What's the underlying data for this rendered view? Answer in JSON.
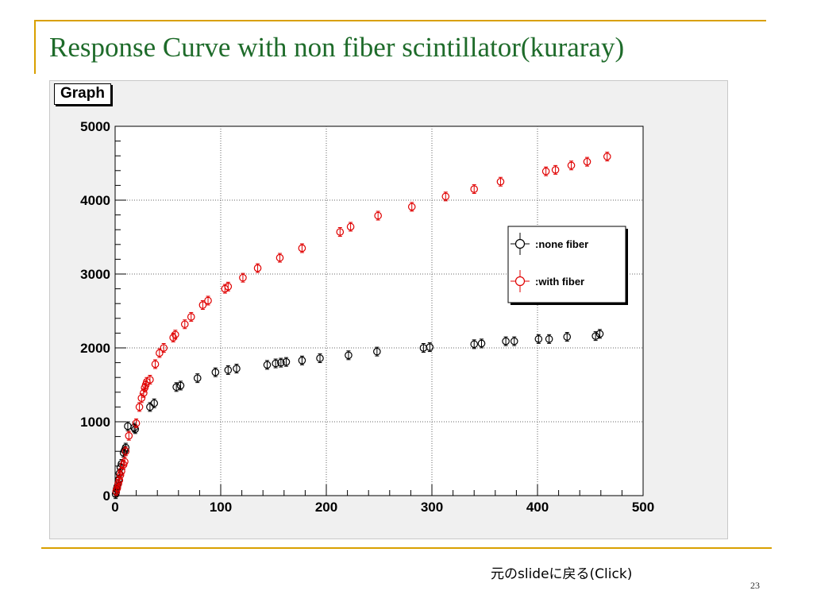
{
  "slide": {
    "title": "Response Curve with non fiber scintillator(kuraray)",
    "nav_link": "元のslideに戻る(Click)",
    "page_number": "23",
    "accent_color": "#d9a000",
    "title_color": "#1e6b2a"
  },
  "canvas": {
    "label": "Graph",
    "background": "#f0f0f0"
  },
  "chart_data": {
    "type": "scatter",
    "title": "",
    "xlabel": "",
    "ylabel": "",
    "xlim": [
      0,
      500
    ],
    "ylim": [
      0,
      5000
    ],
    "x_ticks": [
      0,
      100,
      200,
      300,
      400,
      500
    ],
    "y_ticks": [
      0,
      1000,
      2000,
      3000,
      4000,
      5000
    ],
    "x_tick_labels": [
      "0",
      "100",
      "200",
      "300",
      "400",
      "500"
    ],
    "y_tick_labels": [
      "0",
      "1000",
      "2000",
      "3000",
      "4000",
      "5000"
    ],
    "grid": true,
    "legend_position": "right",
    "series": [
      {
        "name": ":none fiber",
        "color": "#000000",
        "marker": "open-circle-with-errorbars",
        "x": [
          0.5,
          1,
          1.5,
          2,
          3,
          3.5,
          4,
          5,
          6,
          8,
          9,
          10,
          12,
          18,
          19,
          33,
          37,
          58,
          62,
          78,
          95,
          107,
          115,
          144,
          152,
          157,
          162,
          177,
          194,
          221,
          248,
          292,
          298,
          340,
          347,
          370,
          378,
          401,
          411,
          428,
          455,
          459
        ],
        "y": [
          20,
          50,
          90,
          120,
          160,
          220,
          300,
          380,
          430,
          580,
          610,
          650,
          940,
          920,
          900,
          1200,
          1250,
          1470,
          1490,
          1590,
          1670,
          1700,
          1720,
          1770,
          1790,
          1800,
          1810,
          1830,
          1860,
          1900,
          1950,
          2000,
          2010,
          2050,
          2060,
          2090,
          2090,
          2120,
          2120,
          2150,
          2160,
          2190
        ]
      },
      {
        "name": ":with fiber",
        "color": "#e00000",
        "marker": "open-circle-with-errorbars",
        "x": [
          1,
          2,
          3,
          4,
          5,
          6,
          8,
          9,
          10,
          13,
          20,
          23,
          25,
          27,
          28,
          29,
          30,
          33,
          38,
          42,
          46,
          55,
          57,
          66,
          72,
          83,
          88,
          104,
          107,
          121,
          135,
          156,
          177,
          213,
          223,
          249,
          281,
          313,
          340,
          365,
          408,
          417,
          432,
          447,
          466
        ],
        "y": [
          60,
          100,
          160,
          210,
          280,
          330,
          420,
          460,
          600,
          810,
          980,
          1200,
          1320,
          1390,
          1460,
          1500,
          1540,
          1570,
          1780,
          1930,
          2000,
          2140,
          2180,
          2320,
          2420,
          2580,
          2640,
          2800,
          2830,
          2950,
          3080,
          3220,
          3350,
          3570,
          3640,
          3790,
          3910,
          4050,
          4150,
          4250,
          4390,
          4410,
          4470,
          4520,
          4590
        ]
      }
    ]
  }
}
